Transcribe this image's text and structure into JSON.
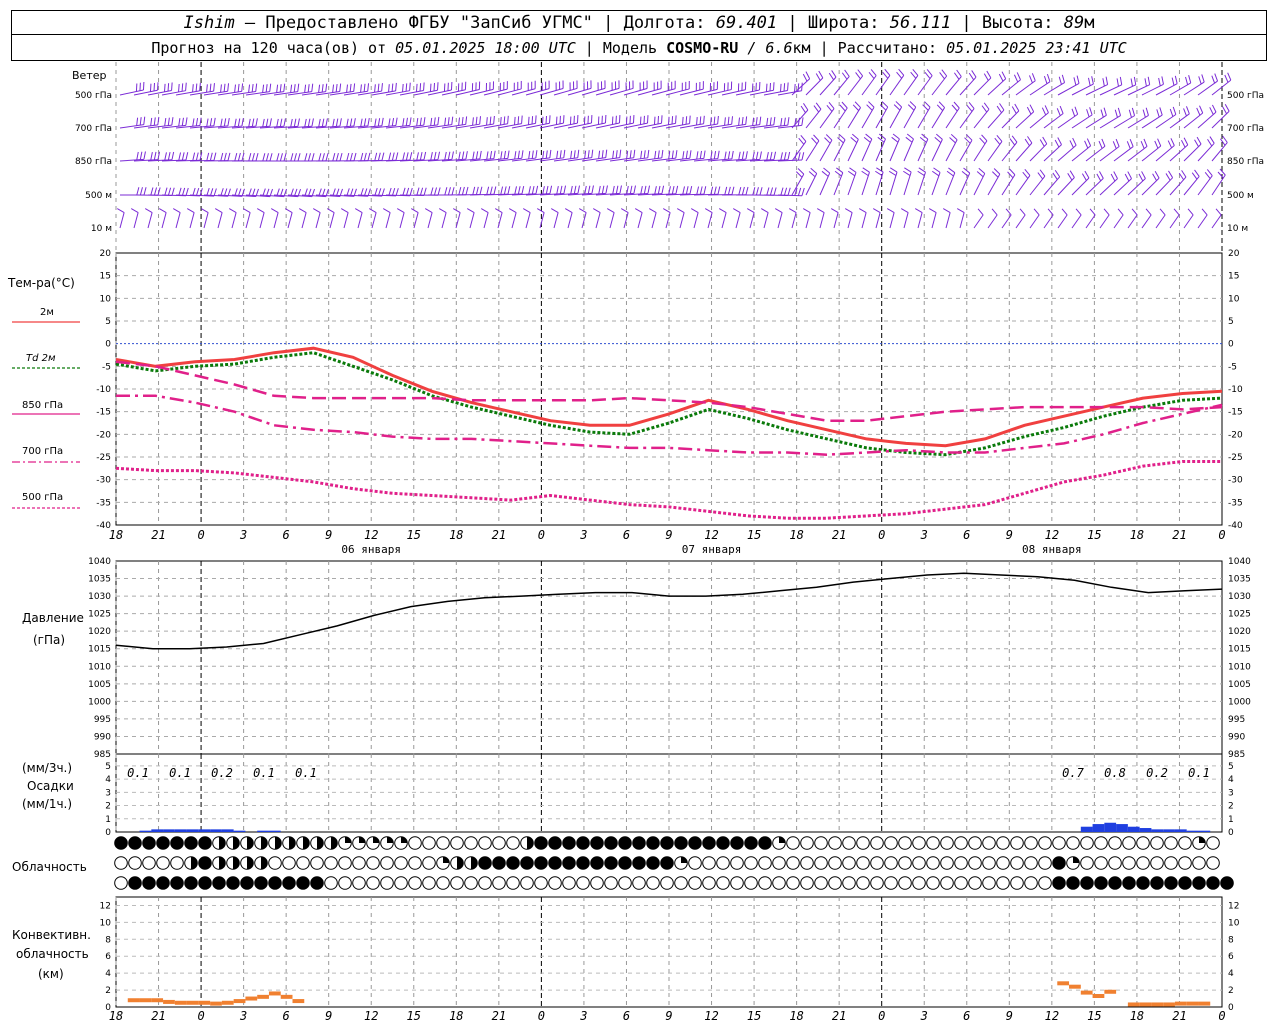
{
  "header": {
    "station": "Ishim",
    "provider": " — Предоставлено ФГБУ \"ЗапСиб УГМС\" | Долгота: ",
    "lon": "69.401",
    "lat_label": " | Широта: ",
    "lat": "56.111",
    "alt_label": " | Высота: ",
    "alt": "89",
    "alt_unit": "м",
    "fc_prefix": "Прогноз на 120 часа(ов) от ",
    "fc_start": "05.01.2025 18:00 UTC",
    "model_label": "  | Модель ",
    "model": "COSMO-RU",
    "res": " / 6.6",
    "res_unit": "км",
    "calc_label": " | Рассчитано: ",
    "calc": "05.01.2025 23:41 UTC"
  },
  "wind_panel": {
    "title": "Ветер",
    "levels": [
      "500 гПа",
      "700 гПа",
      "850 гПа",
      "500 м",
      "10 м"
    ],
    "barb_color": "#7b2bd6"
  },
  "temp_panel": {
    "title": "Тем-ра(°С)",
    "legend": [
      "2м",
      "Td 2м",
      "850 гПа",
      "700 гПа",
      "500 гПа"
    ],
    "y_ticks": [
      20,
      15,
      10,
      5,
      0,
      -5,
      -10,
      -15,
      -20,
      -25,
      -30,
      -35,
      -40
    ]
  },
  "pressure_panel": {
    "title": "Давление",
    "unit": "(гПа)",
    "y_ticks": [
      1040,
      1035,
      1030,
      1025,
      1020,
      1015,
      1010,
      1005,
      1000,
      995,
      990,
      985
    ]
  },
  "precip_panel": {
    "unit_top": "(мм/3ч.)",
    "title": "Осадки",
    "unit_bottom": "(мм/1ч.)",
    "y_ticks": [
      5,
      4,
      3,
      2,
      1,
      0
    ],
    "labels": [
      "0.1",
      "0.1",
      "0.2",
      "0.1",
      "0.1",
      "0.7",
      "0.8",
      "0.2",
      "0.1"
    ]
  },
  "cloud_panel": {
    "title": "Облачность"
  },
  "conv_panel": {
    "title": [
      "Конвективн.",
      "облачность",
      "(км)"
    ],
    "y_ticks": [
      12,
      10,
      8,
      6,
      4,
      2,
      0
    ]
  },
  "x_axis": {
    "hour_labels": [
      "18",
      "21",
      "0",
      "3",
      "6",
      "9",
      "12",
      "15",
      "18",
      "21",
      "0",
      "3",
      "6",
      "9",
      "12",
      "15",
      "18",
      "21",
      "0",
      "3",
      "6",
      "9",
      "12",
      "15",
      "18",
      "21",
      "0"
    ],
    "day_labels": [
      "06 января",
      "07 января",
      "08 января"
    ]
  },
  "chart_data": {
    "type": "line",
    "x_hours_from_start": [
      0,
      3,
      6,
      9,
      12,
      15,
      18,
      21,
      24,
      27,
      30,
      33,
      36,
      39,
      42,
      45,
      48,
      51,
      54,
      57,
      60,
      63,
      66,
      69,
      72,
      75,
      78
    ],
    "temperature_series": [
      {
        "name": "2м",
        "color": "#f04040",
        "values": [
          -3.5,
          -5,
          -4,
          -3.5,
          -2,
          -1,
          -3,
          -7,
          -10.5,
          -13,
          -15,
          -17,
          -18,
          -18,
          -15.5,
          -12.5,
          -14.5,
          -17,
          -19,
          -21,
          -22,
          -22.5,
          -21,
          -18,
          -16,
          -14,
          -12,
          -11,
          -10.5
        ]
      },
      {
        "name": "Td 2м",
        "color": "#0a7a0a",
        "values": [
          -4.5,
          -6,
          -5,
          -4.5,
          -3,
          -2,
          -5,
          -8,
          -11.5,
          -14,
          -16,
          -18,
          -19.5,
          -20,
          -17.5,
          -14.5,
          -16.5,
          -19,
          -21,
          -23,
          -24,
          -24.5,
          -23,
          -20.5,
          -18.5,
          -16,
          -14,
          -12.5,
          -12
        ]
      },
      {
        "name": "850 гПа",
        "color": "#e0208a",
        "values": [
          -4,
          -5,
          -7,
          -9,
          -11.5,
          -12,
          -12,
          -12,
          -12,
          -12.5,
          -12.5,
          -12.5,
          -12.5,
          -12,
          -12.5,
          -13,
          -14,
          -15.5,
          -17,
          -17,
          -16,
          -15,
          -14.5,
          -14,
          -14,
          -14,
          -14,
          -14.5,
          -14
        ]
      },
      {
        "name": "700 гПа",
        "color": "#e0208a",
        "values": [
          -11.5,
          -11.5,
          -13,
          -15,
          -18,
          -19,
          -19.5,
          -20.5,
          -21,
          -21,
          -21.5,
          -22,
          -22.5,
          -23,
          -23,
          -23.5,
          -24,
          -24,
          -24.5,
          -24,
          -23.5,
          -24,
          -24,
          -23,
          -22,
          -20,
          -17.5,
          -15.5,
          -13.5
        ]
      },
      {
        "name": "500 гПа",
        "color": "#e0208a",
        "values": [
          -27.5,
          -28,
          -28,
          -28.5,
          -29.5,
          -30.5,
          -32,
          -33,
          -33.5,
          -34,
          -34.5,
          -33.5,
          -34.5,
          -35.5,
          -36,
          -37,
          -38,
          -38.5,
          -38.5,
          -38,
          -37.5,
          -36.5,
          -35.5,
          -33,
          -30.5,
          -29,
          -27,
          -26,
          -26
        ]
      }
    ],
    "pressure": {
      "name": "Давление",
      "color": "#000000",
      "values": [
        1016,
        1015,
        1015,
        1015.5,
        1016.5,
        1019,
        1021.5,
        1024.5,
        1027,
        1028.5,
        1029.5,
        1030,
        1030.5,
        1031,
        1031,
        1030,
        1030,
        1030.5,
        1031.5,
        1032.5,
        1034,
        1035,
        1036,
        1036.5,
        1036,
        1035.5,
        1034.5,
        1032.5,
        1031,
        1031.5,
        1032
      ]
    },
    "precip_1h": [
      0,
      0,
      0.1,
      0.2,
      0.2,
      0.2,
      0.2,
      0.2,
      0.2,
      0.2,
      0.1,
      0,
      0.1,
      0.1,
      0,
      0,
      0,
      0,
      0,
      0,
      0,
      0,
      0,
      0,
      0,
      0,
      0,
      0,
      0,
      0,
      0,
      0,
      0,
      0,
      0,
      0,
      0,
      0,
      0,
      0,
      0,
      0,
      0,
      0,
      0,
      0,
      0,
      0,
      0,
      0,
      0,
      0,
      0,
      0,
      0,
      0,
      0,
      0,
      0,
      0,
      0,
      0,
      0,
      0,
      0,
      0,
      0,
      0,
      0,
      0,
      0,
      0,
      0,
      0,
      0,
      0,
      0,
      0,
      0,
      0,
      0,
      0,
      0.4,
      0.6,
      0.7,
      0.6,
      0.4,
      0.3,
      0.2,
      0.2,
      0.2,
      0.1,
      0.1,
      0
    ],
    "conv_cloud_km": [
      0,
      0.8,
      0.8,
      0.8,
      0.6,
      0.5,
      0.5,
      0.5,
      0.4,
      0.5,
      0.7,
      1,
      1.2,
      1.6,
      1.2,
      0.7,
      0,
      0,
      0,
      0,
      0,
      0,
      0,
      0,
      0,
      0,
      0,
      0,
      0,
      0,
      0,
      0,
      0,
      0,
      0,
      0,
      0,
      0,
      0,
      0,
      0,
      0,
      0,
      0,
      0,
      0,
      0,
      0,
      0,
      0,
      0,
      0,
      0,
      0,
      0,
      0,
      0,
      0,
      0,
      0,
      0,
      0,
      0,
      0,
      0,
      0,
      0,
      0,
      0,
      0,
      0,
      0,
      0,
      0,
      0,
      0,
      0,
      0,
      0,
      0,
      2.8,
      2.4,
      1.7,
      1.3,
      1.8,
      0,
      0.3,
      0.3,
      0.3,
      0.3,
      0.4,
      0.4,
      0.4,
      0
    ],
    "xlabel": "",
    "ylabel": ""
  }
}
